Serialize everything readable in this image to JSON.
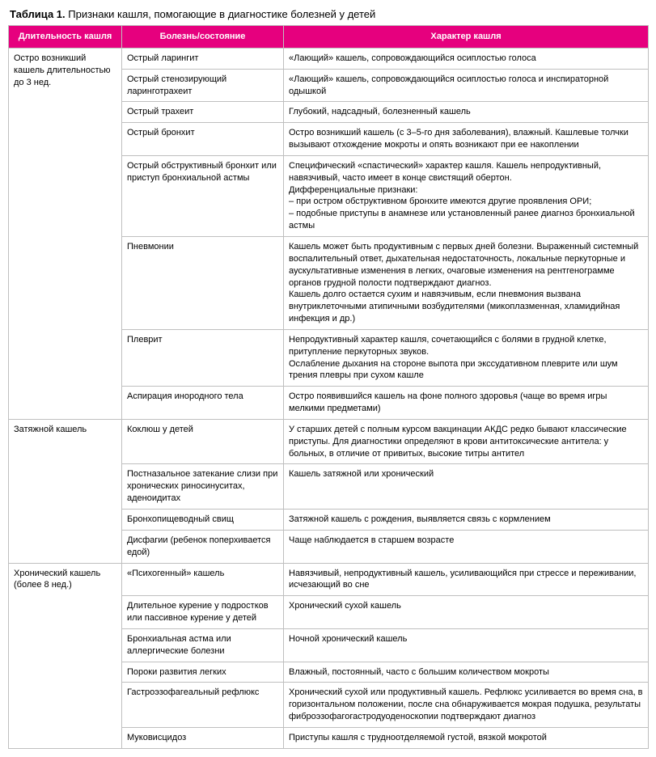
{
  "caption_bold": "Таблица 1.",
  "caption_rest": " Признаки кашля, помогающие в диагностике болезней у детей",
  "header_bg": "#e6007e",
  "headers": {
    "col1": "Длительность кашля",
    "col2": "Болезнь/состояние",
    "col3": "Характер кашля"
  },
  "groups": [
    {
      "label": "Остро возникший кашель длительностью до 3 нед.",
      "rows": [
        {
          "disease": "Острый ларингит",
          "desc": "«Лающий» кашель, сопровождающийся осиплостью голоса"
        },
        {
          "disease": "Острый стенозирующий ларинготрахеит",
          "desc": "«Лающий» кашель, сопровождающийся осиплостью голоса и инспираторной одышкой"
        },
        {
          "disease": "Острый трахеит",
          "desc": "Глубокий, надсадный, болезненный кашель"
        },
        {
          "disease": "Острый бронхит",
          "desc": "Остро возникший кашель (с 3–5-го дня заболевания), влажный. Кашлевые толчки вызывают отхождение мокроты и опять возникают при ее накоплении"
        },
        {
          "disease": "Острый обструктивный бронхит или приступ бронхиальной астмы",
          "desc": "Специфический «спастический» характер кашля. Кашель непродуктивный, навязчивый, часто имеет в конце свистящий обертон.\nДифференциальные признаки:\n– при остром обструктивном бронхите имеются другие проявления ОРИ;\n– подобные приступы в анамнезе или установленный ранее диагноз бронхиальной астмы"
        },
        {
          "disease": "Пневмонии",
          "desc": "Кашель может быть продуктивным с первых дней болезни. Выраженный системный воспалительный ответ, дыхательная недостаточность, локальные перкуторные и аускультативные изменения в легких, очаговые изменения на рентгенограмме органов грудной полости подтверждают диагноз.\nКашель долго остается сухим и навязчивым, если пневмония вызвана внутриклеточными атипичными возбудителями (микоплазменная, хламидийная инфекция и др.)"
        },
        {
          "disease": "Плеврит",
          "desc": "Непродуктивный характер кашля, сочетающийся с болями в грудной клетке, притупление перкуторных звуков.\nОслабление дыхания на стороне выпота при экссудативном плеврите или шум трения плевры при сухом кашле"
        },
        {
          "disease": "Аспирация инородного тела",
          "desc": "Остро появившийся кашель на фоне полного здоровья (чаще во время игры мелкими предметами)"
        }
      ]
    },
    {
      "label": "Затяжной кашель",
      "rows": [
        {
          "disease": "Коклюш у детей",
          "desc": "У старших детей с полным курсом вакцинации АКДС редко бывают классические приступы. Для диагностики определяют в крови антитоксические антитела: у больных, в отличие от привитых, высокие титры антител"
        },
        {
          "disease": "Постназальное затекание слизи при хронических риносинуситах, аденоидитах",
          "desc": "Кашель затяжной или хронический"
        },
        {
          "disease": "Бронхопищеводный свищ",
          "desc": "Затяжной кашель с рождения, выявляется связь с кормлением"
        },
        {
          "disease": "Дисфагии (ребенок поперхивается едой)",
          "desc": "Чаще наблюдается в старшем возрасте"
        }
      ]
    },
    {
      "label": "Хронический кашель (более 8 нед.)",
      "rows": [
        {
          "disease": "«Психогенный» кашель",
          "desc": "Навязчивый, непродуктивный кашель, усиливающийся при стрессе и переживании, исчезающий во сне"
        },
        {
          "disease": "Длительное курение у подростков или пассивное курение у детей",
          "desc": "Хронический сухой кашель"
        },
        {
          "disease": "Бронхиальная астма или аллергические болезни",
          "desc": "Ночной хронический кашель"
        },
        {
          "disease": "Пороки развития легких",
          "desc": "Влажный, постоянный, часто с большим количеством мокроты"
        },
        {
          "disease": "Гастроэзофагеальный рефлюкс",
          "desc": "Хронический сухой или продуктивный кашель. Рефлюкс усиливается во время сна, в горизонтальном положении, после сна обнаруживается мокрая подушка, результаты фиброэзофагогастродуоденоскопии подтверждают диагноз"
        },
        {
          "disease": "Муковисцидоз",
          "desc": "Приступы кашля с трудноотделяемой густой, вязкой мокротой"
        }
      ]
    }
  ]
}
